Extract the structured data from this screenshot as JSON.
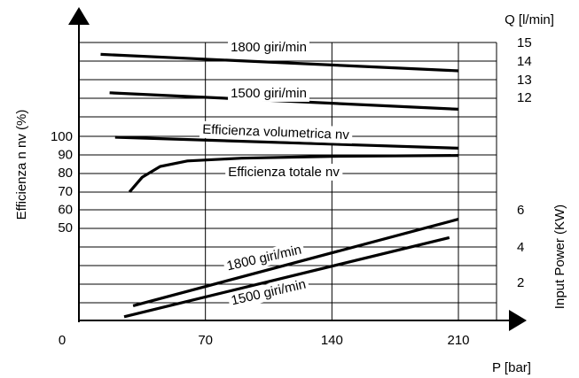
{
  "chart_data": {
    "type": "line",
    "title": "",
    "x_axis": {
      "label": "P [bar]",
      "ticks": [
        {
          "value": 0,
          "label": "0"
        },
        {
          "value": 70,
          "label": "70"
        },
        {
          "value": 140,
          "label": "140"
        },
        {
          "value": 210,
          "label": "210"
        }
      ],
      "range": [
        0,
        240
      ]
    },
    "left_axis": {
      "label": "Efficienza n nv (%)",
      "ticks": [
        {
          "value": 100,
          "label": "100"
        },
        {
          "value": 90,
          "label": "90"
        },
        {
          "value": 80,
          "label": "80"
        },
        {
          "value": 70,
          "label": "70"
        },
        {
          "value": 60,
          "label": "60"
        },
        {
          "value": 50,
          "label": "50"
        }
      ]
    },
    "right_axis_flow": {
      "label": "Q [l/min]",
      "ticks": [
        {
          "value": 15,
          "label": "15"
        },
        {
          "value": 14,
          "label": "14"
        },
        {
          "value": 13,
          "label": "13"
        },
        {
          "value": 12,
          "label": "12"
        }
      ]
    },
    "right_axis_power": {
      "label": "Input Power (KW)",
      "ticks": [
        {
          "value": 6,
          "label": "6"
        },
        {
          "value": 4,
          "label": "4"
        },
        {
          "value": 2,
          "label": "2"
        }
      ]
    },
    "grid": true,
    "series": [
      {
        "name": "1800 giri/min",
        "axis": "flow",
        "label": "1800 giri/min",
        "points": [
          [
            12,
            14.4
          ],
          [
            210,
            13.5
          ]
        ]
      },
      {
        "name": "1500 giri/min",
        "axis": "flow",
        "label": "1500 giri/min",
        "points": [
          [
            17,
            12.3
          ],
          [
            210,
            11.4
          ]
        ]
      },
      {
        "name": "Efficienza volumetrica nv",
        "axis": "efficiency",
        "label": "Efficienza volumetrica nv",
        "points": [
          [
            20,
            100
          ],
          [
            210,
            94
          ]
        ]
      },
      {
        "name": "Efficienza totale nv",
        "axis": "efficiency",
        "label": "Efficienza totale nv",
        "points": [
          [
            28,
            70
          ],
          [
            35,
            78
          ],
          [
            45,
            84
          ],
          [
            60,
            87
          ],
          [
            90,
            88.5
          ],
          [
            140,
            89.5
          ],
          [
            210,
            90
          ]
        ]
      },
      {
        "name": "1800 giri/min",
        "axis": "power",
        "label": "1800 giri/min",
        "points": [
          [
            30,
            0.8
          ],
          [
            210,
            5.5
          ]
        ]
      },
      {
        "name": "1500 giri/min",
        "axis": "power",
        "label": "1500 giri/min",
        "points": [
          [
            25,
            0.2
          ],
          [
            205,
            4.5
          ]
        ]
      }
    ]
  }
}
